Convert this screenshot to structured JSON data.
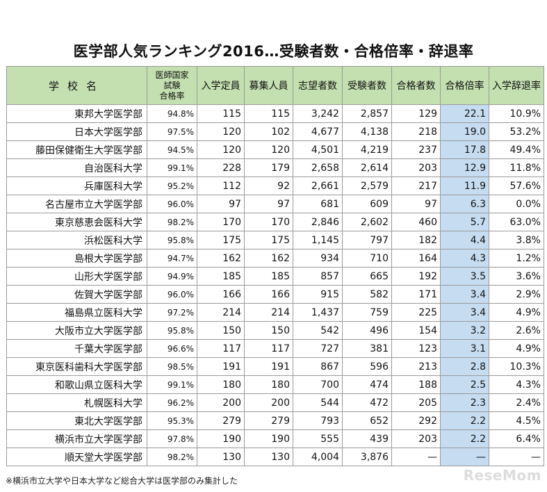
{
  "title": "医学部人気ランキング2016…受験者数・合格倍率・辞退率",
  "headers": {
    "school": "学校名",
    "pass_rate_line1": "医師国家",
    "pass_rate_line2": "試験",
    "pass_rate_line3": "合格率",
    "capacity": "入学定員",
    "recruit": "募集人員",
    "applicants": "志望者数",
    "examinees": "受験者数",
    "passers": "合格者数",
    "ratio": "合格倍率",
    "decline": "入学辞退率"
  },
  "rows": [
    {
      "name": "東邦大学医学部",
      "pass_rate": "94.8%",
      "capacity": "115",
      "recruit": "115",
      "applicants": "3,242",
      "examinees": "2,857",
      "passers": "129",
      "ratio": "22.1",
      "decline": "10.9%"
    },
    {
      "name": "日本大学医学部",
      "pass_rate": "97.5%",
      "capacity": "120",
      "recruit": "102",
      "applicants": "4,677",
      "examinees": "4,138",
      "passers": "218",
      "ratio": "19.0",
      "decline": "53.2%"
    },
    {
      "name": "藤田保健衛生大学医学部",
      "pass_rate": "94.5%",
      "capacity": "120",
      "recruit": "120",
      "applicants": "4,501",
      "examinees": "4,219",
      "passers": "237",
      "ratio": "17.8",
      "decline": "49.4%"
    },
    {
      "name": "自治医科大学",
      "pass_rate": "99.1%",
      "capacity": "228",
      "recruit": "179",
      "applicants": "2,658",
      "examinees": "2,614",
      "passers": "203",
      "ratio": "12.9",
      "decline": "11.8%"
    },
    {
      "name": "兵庫医科大学",
      "pass_rate": "95.2%",
      "capacity": "112",
      "recruit": "92",
      "applicants": "2,661",
      "examinees": "2,579",
      "passers": "217",
      "ratio": "11.9",
      "decline": "57.6%"
    },
    {
      "name": "名古屋市立大学医学部",
      "pass_rate": "96.0%",
      "capacity": "97",
      "recruit": "97",
      "applicants": "681",
      "examinees": "609",
      "passers": "97",
      "ratio": "6.3",
      "decline": "0.0%"
    },
    {
      "name": "東京慈恵会医科大学",
      "pass_rate": "98.2%",
      "capacity": "170",
      "recruit": "170",
      "applicants": "2,846",
      "examinees": "2,602",
      "passers": "460",
      "ratio": "5.7",
      "decline": "63.0%"
    },
    {
      "name": "浜松医科大学",
      "pass_rate": "95.8%",
      "capacity": "175",
      "recruit": "175",
      "applicants": "1,145",
      "examinees": "797",
      "passers": "182",
      "ratio": "4.4",
      "decline": "3.8%"
    },
    {
      "name": "島根大学医学部",
      "pass_rate": "94.7%",
      "capacity": "162",
      "recruit": "162",
      "applicants": "934",
      "examinees": "710",
      "passers": "164",
      "ratio": "4.3",
      "decline": "1.2%"
    },
    {
      "name": "山形大学医学部",
      "pass_rate": "94.9%",
      "capacity": "185",
      "recruit": "185",
      "applicants": "857",
      "examinees": "665",
      "passers": "192",
      "ratio": "3.5",
      "decline": "3.6%"
    },
    {
      "name": "佐賀大学医学部",
      "pass_rate": "96.0%",
      "capacity": "166",
      "recruit": "166",
      "applicants": "915",
      "examinees": "582",
      "passers": "171",
      "ratio": "3.4",
      "decline": "2.9%"
    },
    {
      "name": "福島県立医科大学",
      "pass_rate": "97.2%",
      "capacity": "214",
      "recruit": "214",
      "applicants": "1,437",
      "examinees": "759",
      "passers": "225",
      "ratio": "3.4",
      "decline": "4.9%"
    },
    {
      "name": "大阪市立大学医学部",
      "pass_rate": "95.8%",
      "capacity": "150",
      "recruit": "150",
      "applicants": "542",
      "examinees": "496",
      "passers": "154",
      "ratio": "3.2",
      "decline": "2.6%"
    },
    {
      "name": "千葉大学医学部",
      "pass_rate": "96.6%",
      "capacity": "117",
      "recruit": "117",
      "applicants": "727",
      "examinees": "381",
      "passers": "123",
      "ratio": "3.1",
      "decline": "4.9%"
    },
    {
      "name": "東京医科歯科大学医学部",
      "pass_rate": "98.5%",
      "capacity": "191",
      "recruit": "191",
      "applicants": "867",
      "examinees": "596",
      "passers": "213",
      "ratio": "2.8",
      "decline": "10.3%"
    },
    {
      "name": "和歌山県立医科大学",
      "pass_rate": "99.1%",
      "capacity": "180",
      "recruit": "180",
      "applicants": "700",
      "examinees": "474",
      "passers": "188",
      "ratio": "2.5",
      "decline": "4.3%"
    },
    {
      "name": "札幌医科大学",
      "pass_rate": "96.2%",
      "capacity": "200",
      "recruit": "200",
      "applicants": "544",
      "examinees": "472",
      "passers": "205",
      "ratio": "2.3",
      "decline": "2.4%"
    },
    {
      "name": "東北大学医学部",
      "pass_rate": "95.3%",
      "capacity": "279",
      "recruit": "279",
      "applicants": "793",
      "examinees": "652",
      "passers": "292",
      "ratio": "2.2",
      "decline": "4.5%"
    },
    {
      "name": "横浜市立大学医学部",
      "pass_rate": "97.8%",
      "capacity": "190",
      "recruit": "190",
      "applicants": "555",
      "examinees": "439",
      "passers": "203",
      "ratio": "2.2",
      "decline": "6.4%"
    },
    {
      "name": "順天堂大学医学部",
      "pass_rate": "98.2%",
      "capacity": "130",
      "recruit": "130",
      "applicants": "4,004",
      "examinees": "3,876",
      "passers": "—",
      "ratio": "—",
      "decline": "—"
    }
  ],
  "footnote": "※横浜市立大学や日本大学など総合大学は医学部のみ集計した",
  "logo_text": "ReseMom"
}
